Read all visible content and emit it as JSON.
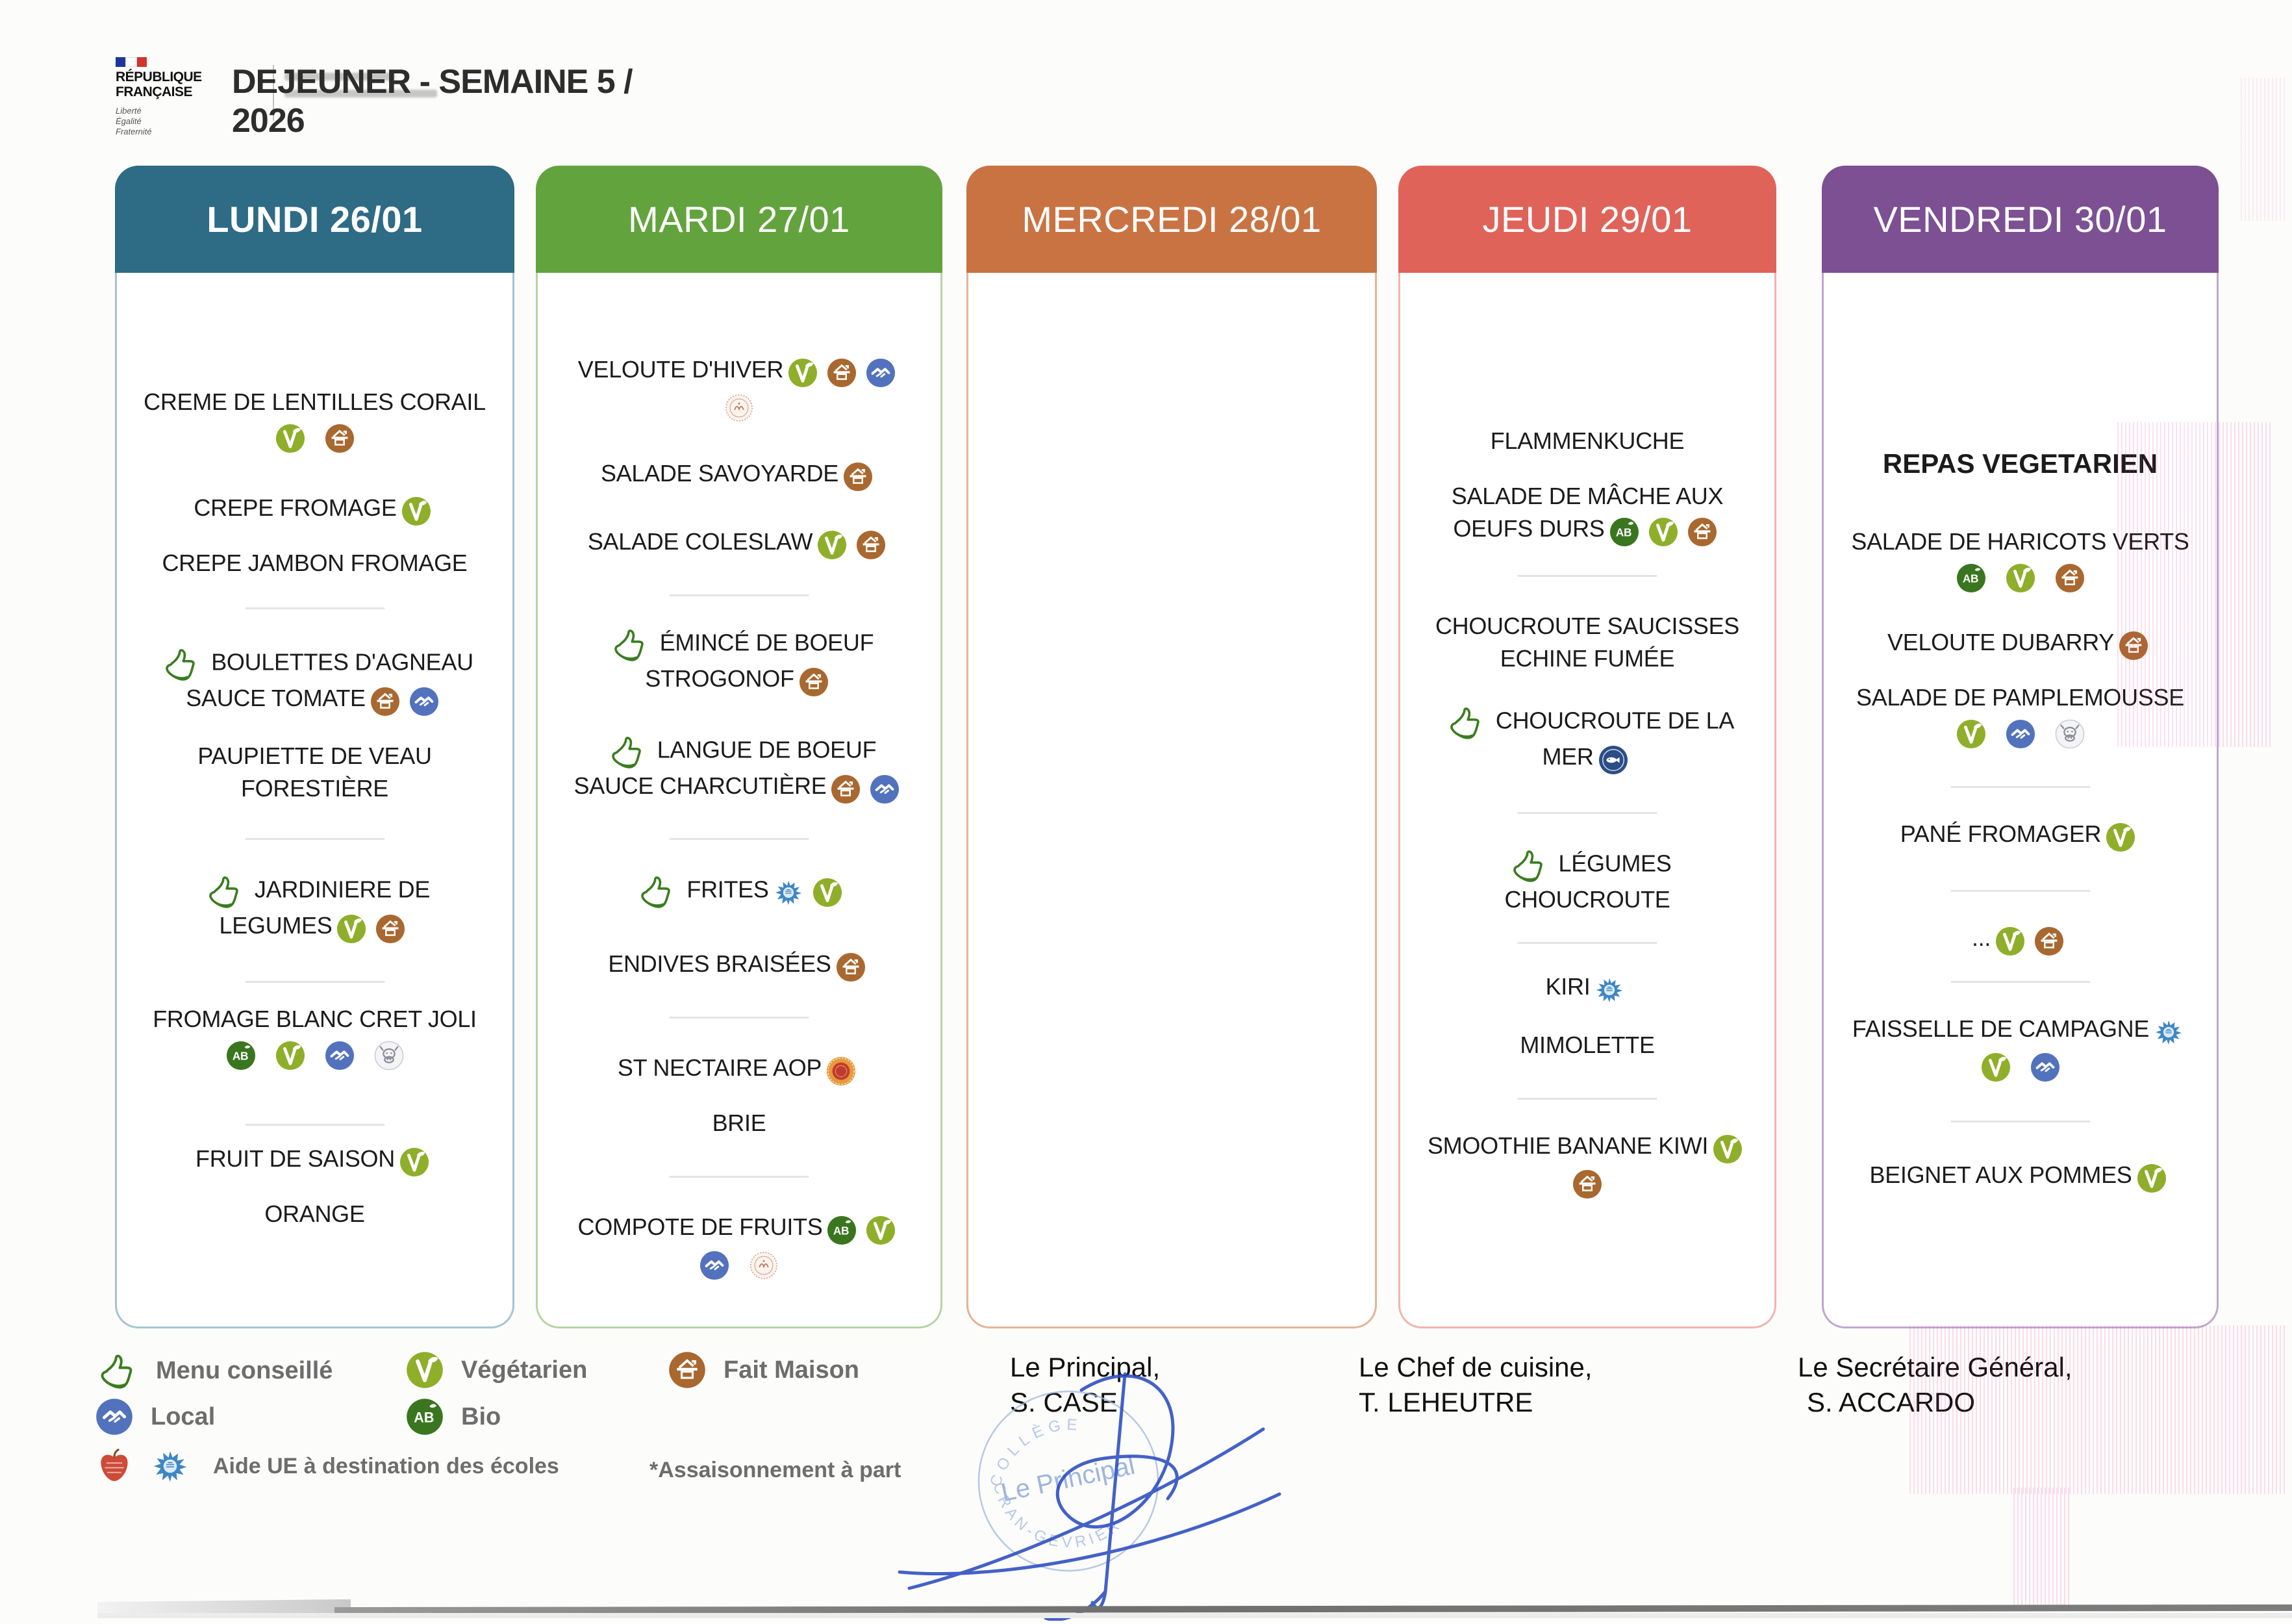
{
  "page": {
    "title_line1": "DEJEUNER - SEMAINE 5 /",
    "title_line2": "2026"
  },
  "logo": {
    "org_line1": "RÉPUBLIQUE",
    "org_line2": "FRANÇAISE",
    "motto_line1": "Liberté",
    "motto_line2": "Égalité",
    "motto_line3": "Fraternité"
  },
  "columns": [
    {
      "id": "lundi",
      "label": "LUNDI 26/01",
      "color": "#2e6b85",
      "border": "#a4c4d2",
      "bold": true,
      "items": [
        {
          "lines": [
            "CREME DE LENTILLES CORAIL"
          ],
          "below": [
            "vegetarien",
            "fait-maison"
          ]
        },
        {
          "lines": [
            "CREPE FROMAGE"
          ],
          "inline": [
            "vegetarien"
          ]
        },
        {
          "lines": [
            "CREPE JAMBON FROMAGE"
          ]
        },
        {
          "thumb": true,
          "lines": [
            "BOULETTES D'AGNEAU",
            "SAUCE TOMATE"
          ],
          "inline": [
            "fait-maison",
            "local"
          ]
        },
        {
          "lines": [
            "PAUPIETTE DE VEAU",
            "FORESTIÈRE"
          ]
        },
        {
          "thumb": true,
          "lines": [
            "JARDINIERE DE",
            "LEGUMES"
          ],
          "inline": [
            "vegetarien",
            "fait-maison"
          ]
        },
        {
          "lines": [
            "FROMAGE BLANC CRET JOLI"
          ],
          "below": [
            "bio",
            "vegetarien",
            "local",
            "cow"
          ]
        },
        {
          "lines": [
            "FRUIT DE SAISON"
          ],
          "inline": [
            "vegetarien"
          ]
        },
        {
          "lines": [
            "ORANGE"
          ]
        }
      ]
    },
    {
      "id": "mardi",
      "label": "MARDI 27/01",
      "color": "#63a33e",
      "border": "#b5d4a2",
      "items": [
        {
          "lines": [
            "VELOUTE D'HIVER"
          ],
          "inline": [
            "vegetarien",
            "fait-maison",
            "local"
          ],
          "below": [
            "stamp"
          ]
        },
        {
          "lines": [
            "SALADE SAVOYARDE"
          ],
          "inline": [
            "fait-maison"
          ]
        },
        {
          "lines": [
            "SALADE COLESLAW"
          ],
          "inline": [
            "vegetarien",
            "fait-maison"
          ]
        },
        {
          "thumb": true,
          "lines": [
            "ÉMINCÉ DE BOEUF",
            "STROGONOF"
          ],
          "inline": [
            "fait-maison"
          ]
        },
        {
          "thumb": true,
          "lines": [
            "LANGUE DE BOEUF",
            "SAUCE CHARCUTIÈRE"
          ],
          "inline": [
            "fait-maison",
            "local"
          ]
        },
        {
          "thumb": true,
          "lines": [
            "FRITES"
          ],
          "inline": [
            "aide-ue",
            "vegetarien"
          ]
        },
        {
          "lines": [
            "ENDIVES BRAISÉES"
          ],
          "inline": [
            "fait-maison"
          ]
        },
        {
          "lines": [
            "ST NECTAIRE AOP"
          ],
          "inline": [
            "aop"
          ]
        },
        {
          "lines": [
            "BRIE"
          ]
        },
        {
          "lines": [
            "COMPOTE DE FRUITS"
          ],
          "inline": [
            "bio",
            "vegetarien"
          ],
          "below": [
            "local",
            "stamp"
          ]
        }
      ]
    },
    {
      "id": "mercredi",
      "label": "MERCREDI 28/01",
      "color": "#c97343",
      "border": "#e3b495",
      "items": []
    },
    {
      "id": "jeudi",
      "label": "JEUDI 29/01",
      "color": "#e0635a",
      "border": "#f2b3ae",
      "items": [
        {
          "lines": [
            "FLAMMENKUCHE"
          ]
        },
        {
          "lines": [
            "SALADE DE MÂCHE AUX",
            "OEUFS DURS"
          ],
          "inline": [
            "bio",
            "vegetarien",
            "fait-maison"
          ]
        },
        {
          "lines": [
            "CHOUCROUTE SAUCISSES",
            "ECHINE FUMÉE"
          ]
        },
        {
          "thumb": true,
          "lines": [
            "CHOUCROUTE DE LA",
            "MER"
          ],
          "inline": [
            "peche-durable"
          ]
        },
        {
          "thumb": true,
          "lines": [
            "LÉGUMES",
            "CHOUCROUTE"
          ]
        },
        {
          "lines": [
            "KIRI"
          ],
          "inline": [
            "aide-ue"
          ]
        },
        {
          "lines": [
            "MIMOLETTE"
          ]
        },
        {
          "lines": [
            "SMOOTHIE BANANE KIWI"
          ],
          "inline": [
            "vegetarien"
          ],
          "below": [
            "fait-maison"
          ]
        }
      ]
    },
    {
      "id": "vendredi",
      "label": "VENDREDI 30/01",
      "color": "#7c5093",
      "border": "#c0a6cf",
      "items": [
        {
          "lines": [
            "REPAS VEGETARIEN"
          ],
          "bold": true
        },
        {
          "lines": [
            "SALADE DE HARICOTS VERTS"
          ],
          "below": [
            "bio",
            "vegetarien",
            "fait-maison"
          ]
        },
        {
          "lines": [
            "VELOUTE DUBARRY"
          ],
          "inline": [
            "fait-maison"
          ]
        },
        {
          "lines": [
            "SALADE DE PAMPLEMOUSSE"
          ],
          "below": [
            "vegetarien",
            "local",
            "cow"
          ]
        },
        {
          "lines": [
            "PANÉ FROMAGER"
          ],
          "inline": [
            "vegetarien"
          ]
        },
        {
          "lines": [
            "..."
          ],
          "inline": [
            "vegetarien",
            "fait-maison"
          ]
        },
        {
          "lines": [
            "FAISSELLE DE CAMPAGNE"
          ],
          "inline": [
            "aide-ue"
          ],
          "below": [
            "vegetarien",
            "local"
          ]
        },
        {
          "lines": [
            "BEIGNET AUX POMMES"
          ],
          "inline": [
            "vegetarien"
          ]
        }
      ]
    }
  ],
  "legend": {
    "entries": [
      {
        "icon": "menu-conseille",
        "label": "Menu conseillé"
      },
      {
        "icon": "vegetarien",
        "label": "Végétarien"
      },
      {
        "icon": "fait-maison",
        "label": "Fait Maison"
      },
      {
        "icon": "local",
        "label": "Local"
      },
      {
        "icon": "bio",
        "label": "Bio"
      }
    ],
    "ue_label": "Aide UE à destination des écoles",
    "assaisonnement": "*Assaisonnement à part"
  },
  "signatures": [
    {
      "role": "Le Principal,",
      "name": "S. CASE"
    },
    {
      "role": "Le Chef de cuisine,",
      "name": "T. LEHEUTRE"
    },
    {
      "role": "Le Secrétaire Général,",
      "name": "S. ACCARDO"
    }
  ],
  "stamp": {
    "center": "Le Principal",
    "arc_top": "COLLÈGE",
    "arc_bottom": "CRAN-GEVRIER"
  }
}
